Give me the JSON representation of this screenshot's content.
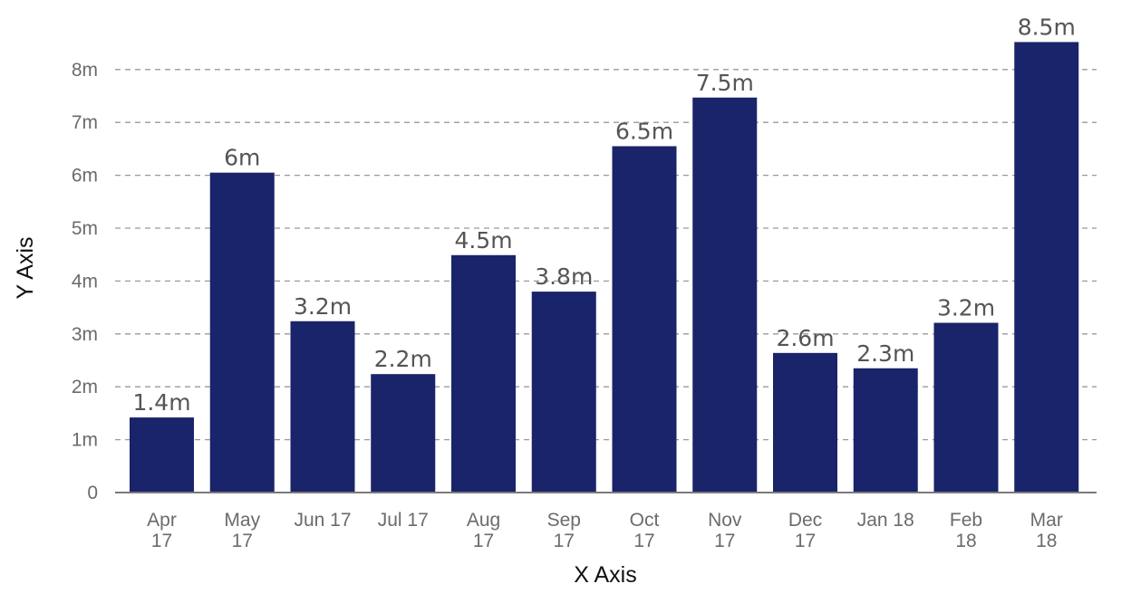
{
  "chart_data": {
    "type": "bar",
    "title": "",
    "xlabel": "X Axis",
    "ylabel": "Y Axis",
    "categories": [
      [
        "Apr",
        "17"
      ],
      [
        "May",
        "17"
      ],
      [
        "Jun 17"
      ],
      [
        "Jul 17"
      ],
      [
        "Aug",
        "17"
      ],
      [
        "Sep",
        "17"
      ],
      [
        "Oct",
        "17"
      ],
      [
        "Nov",
        "17"
      ],
      [
        "Dec",
        "17"
      ],
      [
        "Jan 18"
      ],
      [
        "Feb",
        "18"
      ],
      [
        "Mar",
        "18"
      ]
    ],
    "values": [
      1.42,
      6.05,
      3.24,
      2.24,
      4.49,
      3.8,
      6.55,
      7.47,
      2.64,
      2.35,
      3.21,
      8.52
    ],
    "data_labels": [
      "1.4m",
      "6m",
      "3.2m",
      "2.2m",
      "4.5m",
      "3.8m",
      "6.5m",
      "7.5m",
      "2.6m",
      "2.3m",
      "3.2m",
      "8.5m"
    ],
    "yticks": [
      0,
      1,
      2,
      3,
      4,
      5,
      6,
      7,
      8
    ],
    "ytick_labels": [
      "0",
      "1m",
      "2m",
      "3m",
      "4m",
      "5m",
      "6m",
      "7m",
      "8m"
    ],
    "ylim": [
      0,
      8.55
    ],
    "grid": true,
    "legend": "none",
    "bar_color": "#19246a"
  }
}
